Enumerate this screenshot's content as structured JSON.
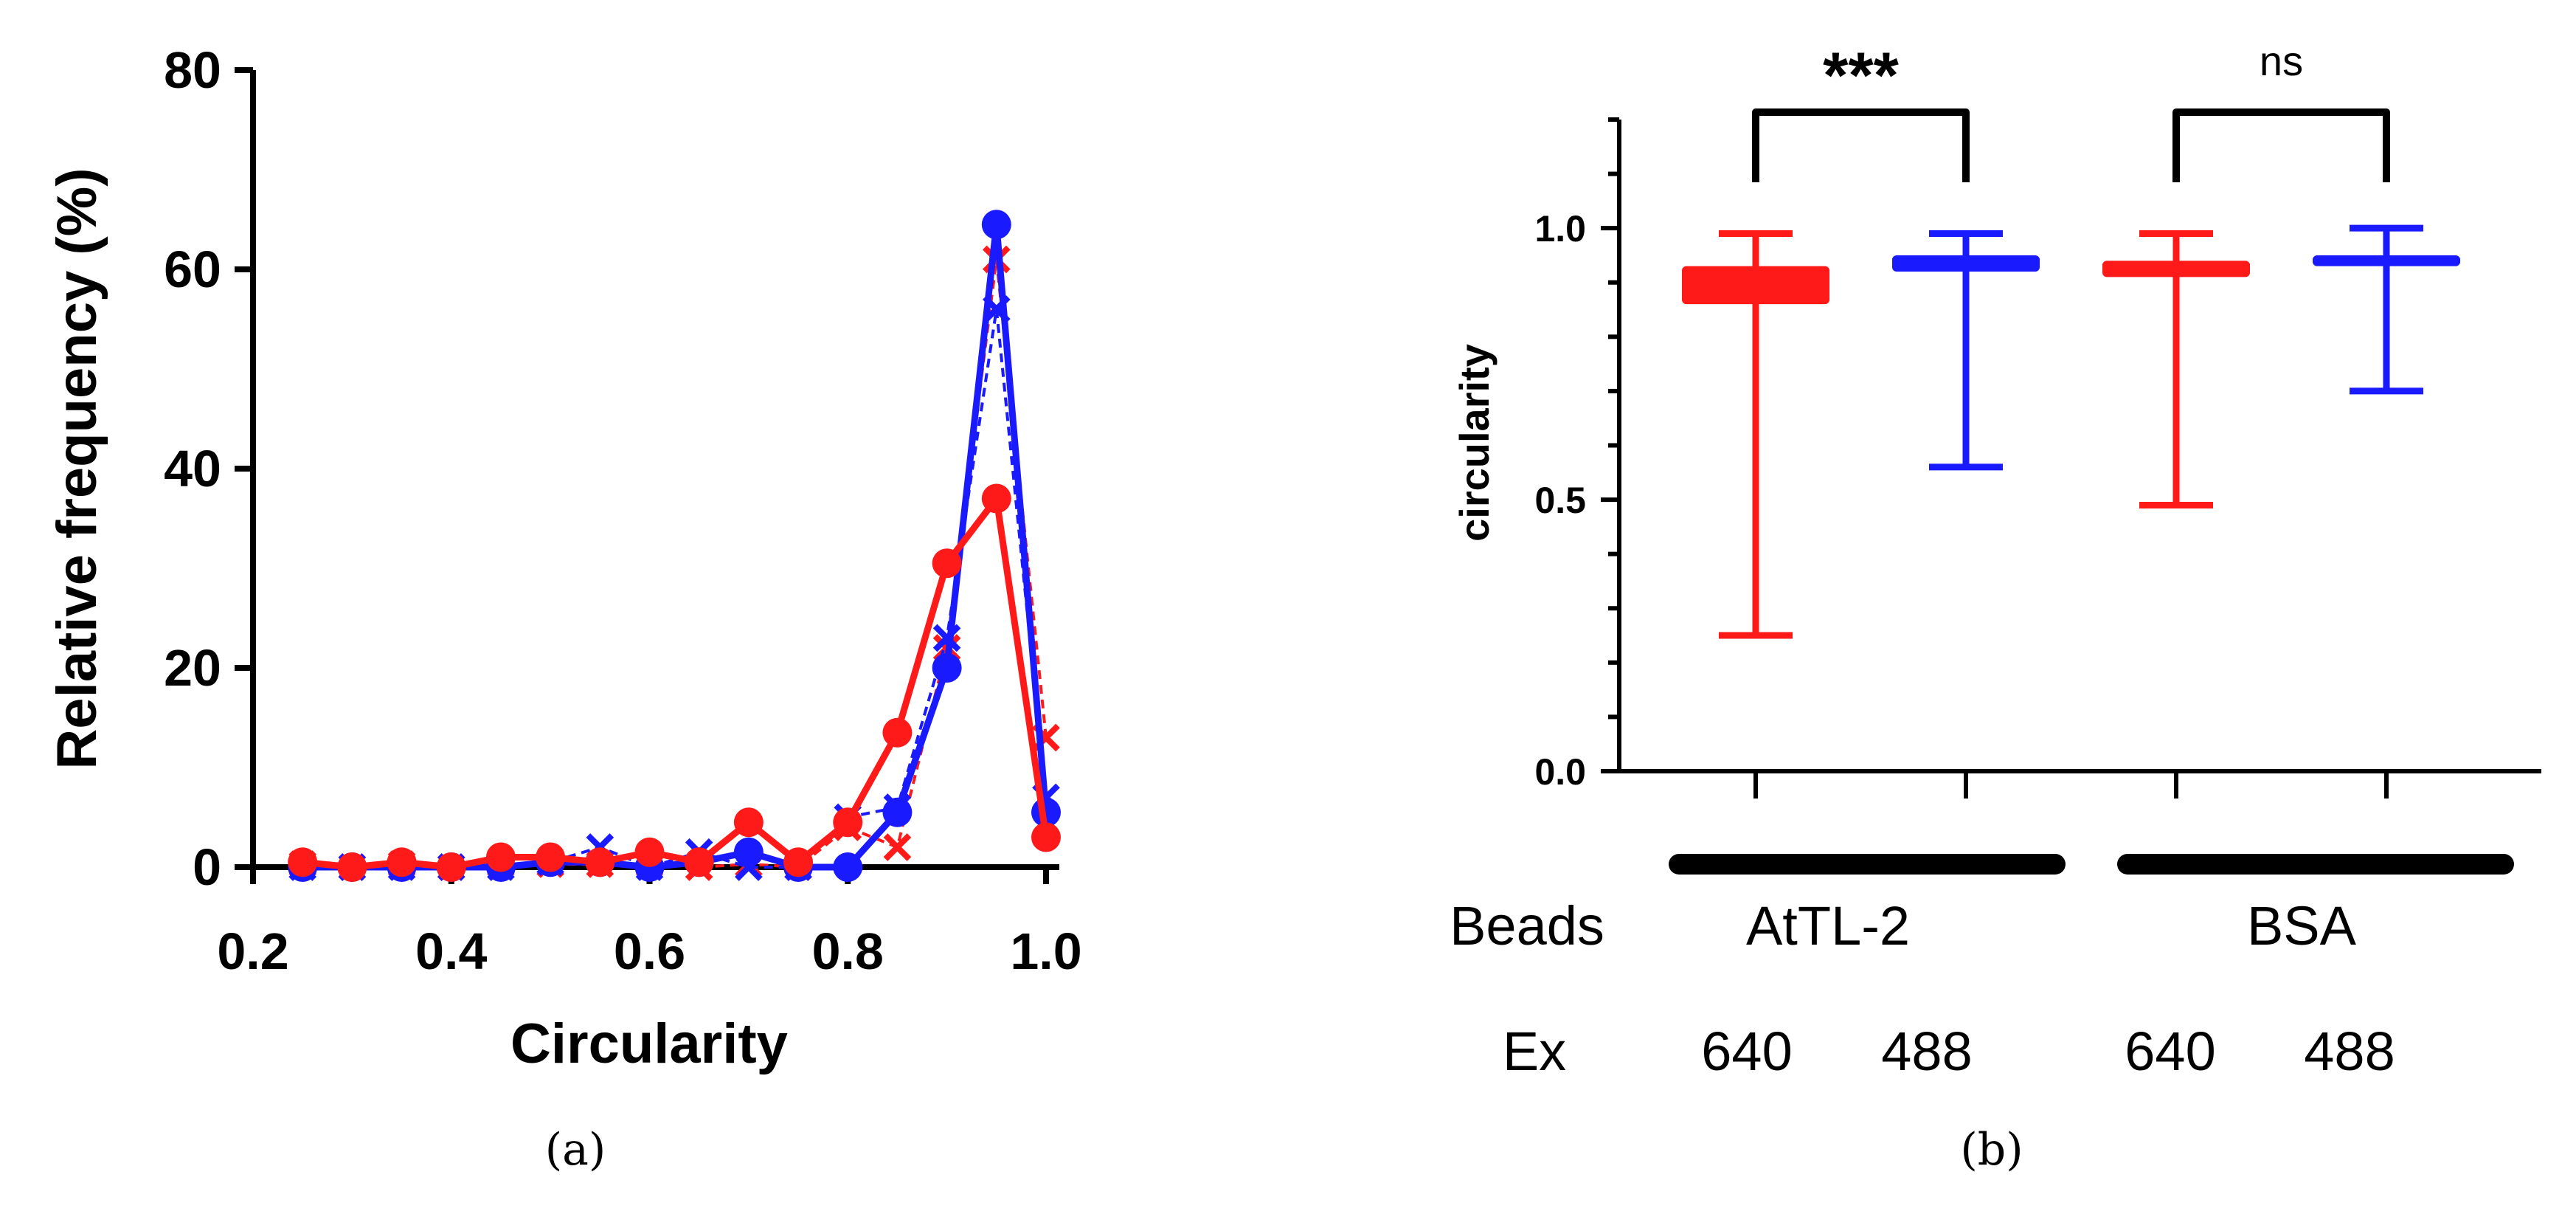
{
  "panel_labels": {
    "a": "(a)",
    "b": "(b)"
  },
  "colors": {
    "red": "#ff1a1a",
    "blue": "#1a1aff",
    "axis": "#000000"
  },
  "chart_data": [
    {
      "type": "line",
      "panel": "a",
      "xlabel": "Circularity",
      "ylabel": "Relative frequency (%)",
      "xlim": [
        0.2,
        1.0
      ],
      "ylim": [
        0,
        80
      ],
      "xticks": [
        "0.2",
        "0.4",
        "0.6",
        "0.8",
        "1.0"
      ],
      "yticks": [
        "0",
        "20",
        "40",
        "60",
        "80"
      ],
      "x": [
        0.25,
        0.3,
        0.35,
        0.4,
        0.45,
        0.5,
        0.55,
        0.6,
        0.65,
        0.7,
        0.75,
        0.8,
        0.85,
        0.9,
        0.95,
        1.0
      ],
      "series": [
        {
          "name": "red-x-dashed",
          "color": "red",
          "marker": "x",
          "dashed": true,
          "values": [
            0.3,
            0,
            0.3,
            0,
            0.3,
            0.3,
            0.3,
            0.3,
            0,
            0.3,
            0,
            4,
            2,
            22,
            61,
            13
          ]
        },
        {
          "name": "blue-x-dashed",
          "color": "blue",
          "marker": "x",
          "dashed": true,
          "values": [
            0,
            0,
            0,
            0,
            0,
            0.5,
            2,
            0,
            1.5,
            0,
            0,
            5,
            6,
            23,
            56,
            7
          ]
        },
        {
          "name": "blue-circle",
          "color": "blue",
          "marker": "o",
          "dashed": false,
          "values": [
            0,
            0,
            0,
            0,
            0,
            0.5,
            0.5,
            0,
            0.5,
            1.5,
            0,
            0,
            5.5,
            20,
            64.5,
            5.5
          ]
        },
        {
          "name": "red-circle",
          "color": "red",
          "marker": "o",
          "dashed": false,
          "values": [
            0.5,
            0,
            0.5,
            0,
            1,
            1,
            0.5,
            1.5,
            0.5,
            4.5,
            0.5,
            4.5,
            13.5,
            30.5,
            37,
            3
          ]
        }
      ]
    },
    {
      "type": "box",
      "panel": "b",
      "ylabel": "circularity",
      "ylim": [
        0,
        1.2
      ],
      "yticks": [
        "0.0",
        "0.5",
        "1.0"
      ],
      "boxes": [
        {
          "group": "AtTL-2",
          "ex": "640",
          "color": "red",
          "min": 0.25,
          "q1": 0.86,
          "median": 0.9,
          "q3": 0.93,
          "max": 0.99
        },
        {
          "group": "AtTL-2",
          "ex": "488",
          "color": "blue",
          "min": 0.56,
          "q1": 0.92,
          "median": 0.94,
          "q3": 0.95,
          "max": 0.99
        },
        {
          "group": "BSA",
          "ex": "640",
          "color": "red",
          "min": 0.49,
          "q1": 0.91,
          "median": 0.93,
          "q3": 0.94,
          "max": 0.99
        },
        {
          "group": "BSA",
          "ex": "488",
          "color": "blue",
          "min": 0.7,
          "q1": 0.93,
          "median": 0.94,
          "q3": 0.95,
          "max": 1.0
        }
      ],
      "significance": [
        {
          "between": [
            0,
            1
          ],
          "label": "***"
        },
        {
          "between": [
            2,
            3
          ],
          "label": "ns"
        }
      ],
      "row_labels": {
        "beads": "Beads",
        "ex": "Ex"
      },
      "groups": [
        "AtTL-2",
        "BSA"
      ],
      "ex_labels": [
        "640",
        "488",
        "640",
        "488"
      ]
    }
  ]
}
